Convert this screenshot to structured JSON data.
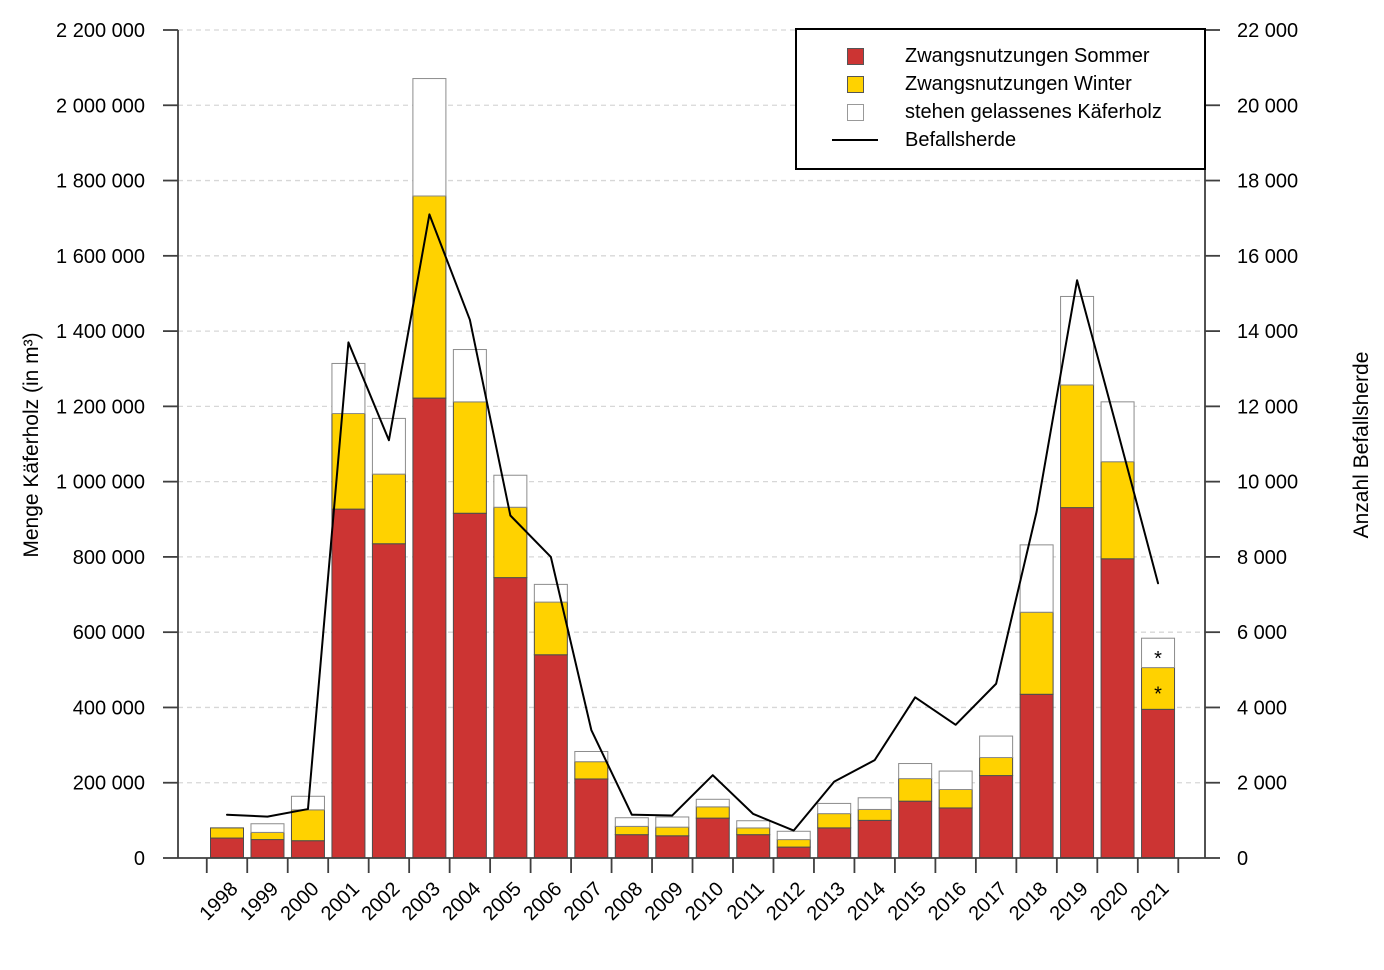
{
  "figure": {
    "left_axis_title": "Menge Käferholz (in m³)",
    "right_axis_title": "Anzahl Befallsherde"
  },
  "colors": {
    "sommer": "#CC3433",
    "winter": "#FFD200",
    "stehen": "#FFFFFF",
    "line": "#000000",
    "grid": "#d7d7d7",
    "axis": "#3f3f3f"
  },
  "legend": {
    "items": [
      {
        "label": "Zwangsnutzungen Sommer",
        "swatch": "square",
        "color": "#CC3433"
      },
      {
        "label": "Zwangsnutzungen Winter",
        "swatch": "square",
        "color": "#FFD200"
      },
      {
        "label": "stehen gelassenes Käferholz",
        "swatch": "square",
        "color": "#FFFFFF"
      },
      {
        "label": "Befallsherde",
        "swatch": "line",
        "color": "#000000"
      }
    ]
  },
  "chart_data": {
    "type": "stacked-bar+line",
    "categories": [
      "1998",
      "1999",
      "2000",
      "2001",
      "2002",
      "2003",
      "2004",
      "2005",
      "2006",
      "2007",
      "2008",
      "2009",
      "2010",
      "2011",
      "2012",
      "2013",
      "2014",
      "2015",
      "2016",
      "2017",
      "2018",
      "2019",
      "2020",
      "2021"
    ],
    "series": [
      {
        "name": "Zwangsnutzungen Sommer",
        "type": "bar-stack",
        "axis": "left",
        "color": "#CC3433",
        "values": [
          53000,
          49000,
          46000,
          927000,
          835000,
          1222000,
          916000,
          745000,
          540000,
          210000,
          62000,
          59000,
          106000,
          62000,
          29000,
          80000,
          100000,
          151000,
          133000,
          219000,
          435000,
          931000,
          795000,
          395000
        ]
      },
      {
        "name": "Zwangsnutzungen Winter",
        "type": "bar-stack",
        "axis": "left",
        "color": "#FFD200",
        "values": [
          27000,
          19000,
          82000,
          254000,
          185000,
          537000,
          296000,
          187000,
          140000,
          46000,
          22000,
          23000,
          30000,
          18000,
          20000,
          38000,
          29000,
          60000,
          49000,
          48000,
          218000,
          326000,
          258000,
          111000
        ]
      },
      {
        "name": "stehen gelassenes Käferholz",
        "type": "bar-stack",
        "axis": "left",
        "color": "#FFFFFF",
        "values": [
          0,
          23000,
          36000,
          133000,
          148000,
          312000,
          139000,
          85000,
          47000,
          27000,
          23000,
          27000,
          20000,
          19000,
          22000,
          27000,
          31000,
          40000,
          49000,
          57000,
          179000,
          235000,
          159000,
          78000
        ]
      },
      {
        "name": "Befallsherde",
        "type": "line",
        "axis": "right",
        "color": "#000000",
        "values": [
          1150,
          1100,
          1300,
          13700,
          11100,
          17100,
          14300,
          9100,
          8000,
          3400,
          1150,
          1130,
          2200,
          1170,
          730,
          2030,
          2600,
          4270,
          3540,
          4630,
          9200,
          15350,
          11350,
          7300
        ]
      }
    ],
    "left_axis": {
      "label": "Menge Käferholz (in m³)",
      "min": 0,
      "max": 2200000,
      "step": 200000
    },
    "right_axis": {
      "label": "Anzahl Befallsherde",
      "min": 0,
      "max": 22000,
      "step": 2000
    },
    "annotations": [
      {
        "category": "2021",
        "segment": "Zwangsnutzungen Winter",
        "text": "*"
      },
      {
        "category": "2021",
        "segment": "stehen gelassenes Käferholz",
        "text": "*"
      }
    ],
    "grid": "dashed-horizontal",
    "legend_position": "top-right"
  }
}
